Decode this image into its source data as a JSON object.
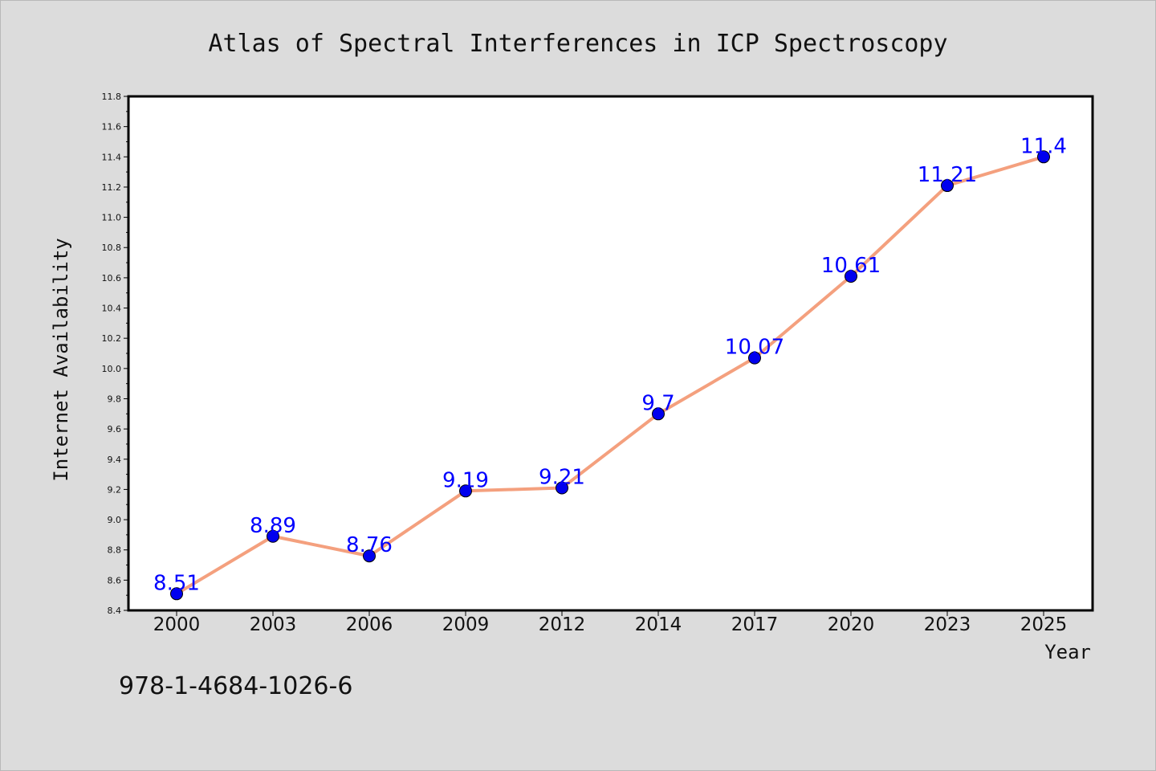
{
  "chart_data": {
    "type": "line",
    "title": "Atlas of Spectral Interferences in ICP Spectroscopy",
    "xlabel": "Year",
    "ylabel": "Internet Availability",
    "categories": [
      "2000",
      "2003",
      "2006",
      "2009",
      "2012",
      "2014",
      "2017",
      "2020",
      "2023",
      "2025"
    ],
    "values": [
      8.51,
      8.89,
      8.76,
      9.19,
      9.21,
      9.7,
      10.07,
      10.61,
      11.21,
      11.4
    ],
    "data_labels": [
      "8.51",
      "8.89",
      "8.76",
      "9.19",
      "9.21",
      "9.7",
      "10.07",
      "10.61",
      "11.21",
      "11.4"
    ],
    "ylim": [
      8.4,
      11.8
    ],
    "yticks": [
      "8.4",
      "8.6",
      "8.8",
      "9.0",
      "9.2",
      "9.4",
      "9.6",
      "9.8",
      "10.0",
      "10.2",
      "10.4",
      "10.6",
      "10.8",
      "11.0",
      "11.2",
      "11.4",
      "11.6",
      "11.8"
    ],
    "grid": false,
    "legend": "none",
    "line_color": "#f4a07e",
    "marker_color": "#0000ee",
    "label_color": "#0000ff"
  },
  "footnote": "978-1-4684-1026-6",
  "colors": {
    "background": "#dcdcdc",
    "plot_background": "#ffffff",
    "axis": "#000000"
  }
}
